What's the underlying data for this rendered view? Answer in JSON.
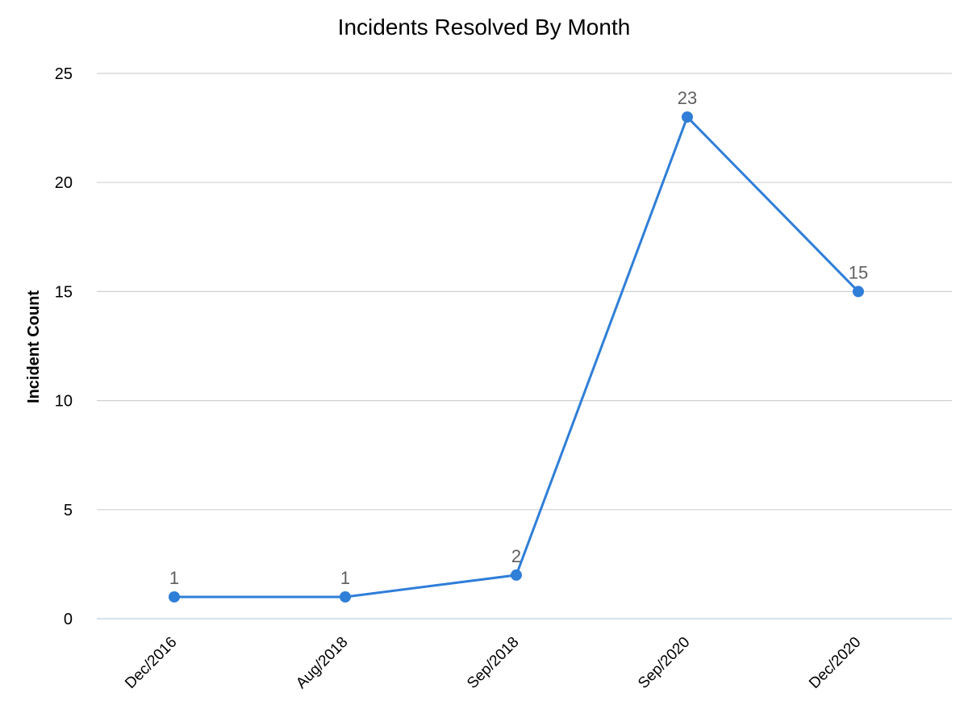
{
  "chart_data": {
    "type": "line",
    "title": "Incidents Resolved By Month",
    "xlabel": "",
    "ylabel": "Incident Count",
    "categories": [
      "Dec/2016",
      "Aug/2018",
      "Sep/2018",
      "Sep/2020",
      "Dec/2020"
    ],
    "series": [
      {
        "name": "Incident Count",
        "values": [
          1,
          1,
          2,
          23,
          15
        ],
        "color": "#2f7ed8"
      }
    ],
    "ylim": [
      0,
      25
    ],
    "yticks": [
      0,
      5,
      10,
      15,
      20,
      25
    ],
    "grid": true,
    "legend": "none",
    "data_labels": true
  },
  "colors": {
    "line": "#2f7ed8",
    "grid": "#d0d0d0",
    "baseline": "#c9d5ea",
    "data_label": "#5f5f5f"
  }
}
